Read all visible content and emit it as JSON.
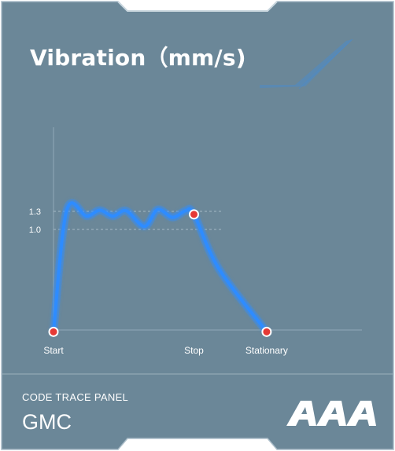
{
  "panel": {
    "title": "Vibration（mm/s)",
    "footer_subtitle": "CODE TRACE PANEL",
    "footer_title": "GMC",
    "logo_text": "AAA"
  },
  "colors": {
    "panel_bg": "#6b8798",
    "line": "#2f8cff",
    "marker": "#e53935"
  },
  "chart_data": {
    "type": "line",
    "ticks_y": [
      "1.3",
      "1.0"
    ],
    "x_labels": [
      "Start",
      "Stop",
      "Stationary"
    ],
    "series": [
      {
        "points": [
          {
            "t": 0.0,
            "v": -0.7
          },
          {
            "t": 0.08,
            "v": 1.32
          },
          {
            "t": 0.2,
            "v": 1.22
          },
          {
            "t": 0.28,
            "v": 1.32
          },
          {
            "t": 0.36,
            "v": 1.22
          },
          {
            "t": 0.44,
            "v": 1.31
          },
          {
            "t": 0.55,
            "v": 1.05
          },
          {
            "t": 0.63,
            "v": 1.33
          },
          {
            "t": 0.72,
            "v": 1.2
          },
          {
            "t": 0.8,
            "v": 1.31
          },
          {
            "t": 0.85,
            "v": 1.25
          },
          {
            "t": 1.0,
            "v": 0.35
          },
          {
            "t": 1.29,
            "v": -0.7
          }
        ]
      }
    ],
    "markers": [
      {
        "t": 0.0,
        "v": -0.7
      },
      {
        "t": 0.85,
        "v": 1.25
      },
      {
        "t": 1.29,
        "v": -0.7
      }
    ]
  }
}
